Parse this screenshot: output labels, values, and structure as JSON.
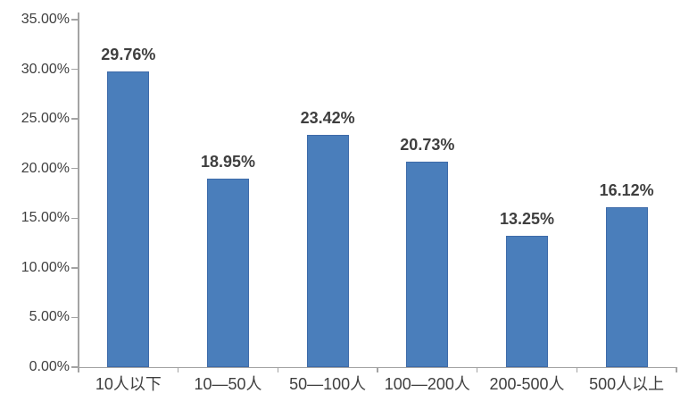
{
  "chart_data": {
    "type": "bar",
    "categories": [
      "10人以下",
      "10—50人",
      "50—100人",
      "100—200人",
      "200-500人",
      "500人以上"
    ],
    "values": [
      29.76,
      18.95,
      23.42,
      20.73,
      13.25,
      16.12
    ],
    "value_labels": [
      "29.76%",
      "18.95%",
      "23.42%",
      "20.73%",
      "13.25%",
      "16.12%"
    ],
    "y_axis": {
      "min": 0,
      "max": 35,
      "step": 5,
      "ticks_top_to_bottom": [
        "35.00%",
        "30.00%",
        "25.00%",
        "20.00%",
        "15.00%",
        "10.00%",
        "5.00%",
        "0.00%"
      ]
    },
    "xlabel": "",
    "ylabel": "",
    "grid": false,
    "legend": "none",
    "colors": {
      "bar_fill": "#4a7ebb",
      "bar_border": "#3e6ba9",
      "axis_line": "#a3a3a3",
      "label_text": "#3f3f3f",
      "background": "#ffffff"
    }
  }
}
